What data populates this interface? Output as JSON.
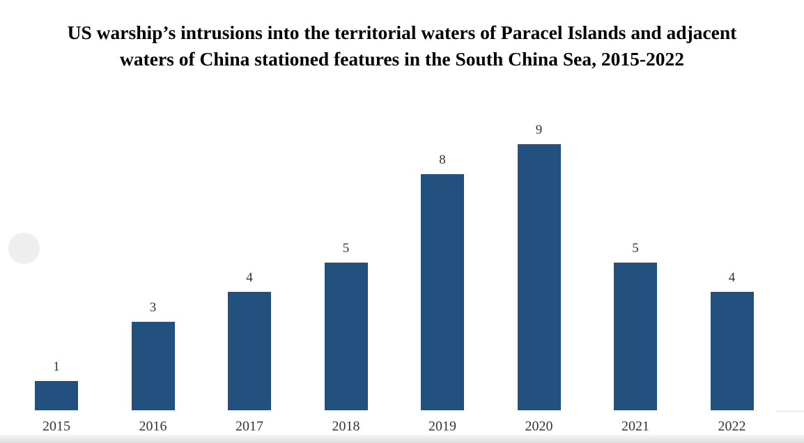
{
  "title_line1": "US warship’s intrusions into the territorial waters of Paracel Islands and adjacent",
  "title_line2": "waters of China stationed features in the South China Sea, 2015-2022",
  "colors": {
    "bar": "#22507f",
    "label": "#333333"
  },
  "chart_data": {
    "type": "bar",
    "title": "US warship’s intrusions into the territorial waters of Paracel Islands and adjacent waters of China stationed features in the South China Sea, 2015-2022",
    "categories": [
      "2015",
      "2016",
      "2017",
      "2018",
      "2019",
      "2020",
      "2021",
      "2022"
    ],
    "values": [
      1,
      3,
      4,
      5,
      8,
      9,
      5,
      4
    ],
    "value_labels": [
      "1",
      "3",
      "4",
      "5",
      "8",
      "9",
      "5",
      "4"
    ],
    "xlabel": "",
    "ylabel": "",
    "ylim": [
      0,
      10
    ],
    "grid": false,
    "legend": null,
    "data_labels": true
  }
}
